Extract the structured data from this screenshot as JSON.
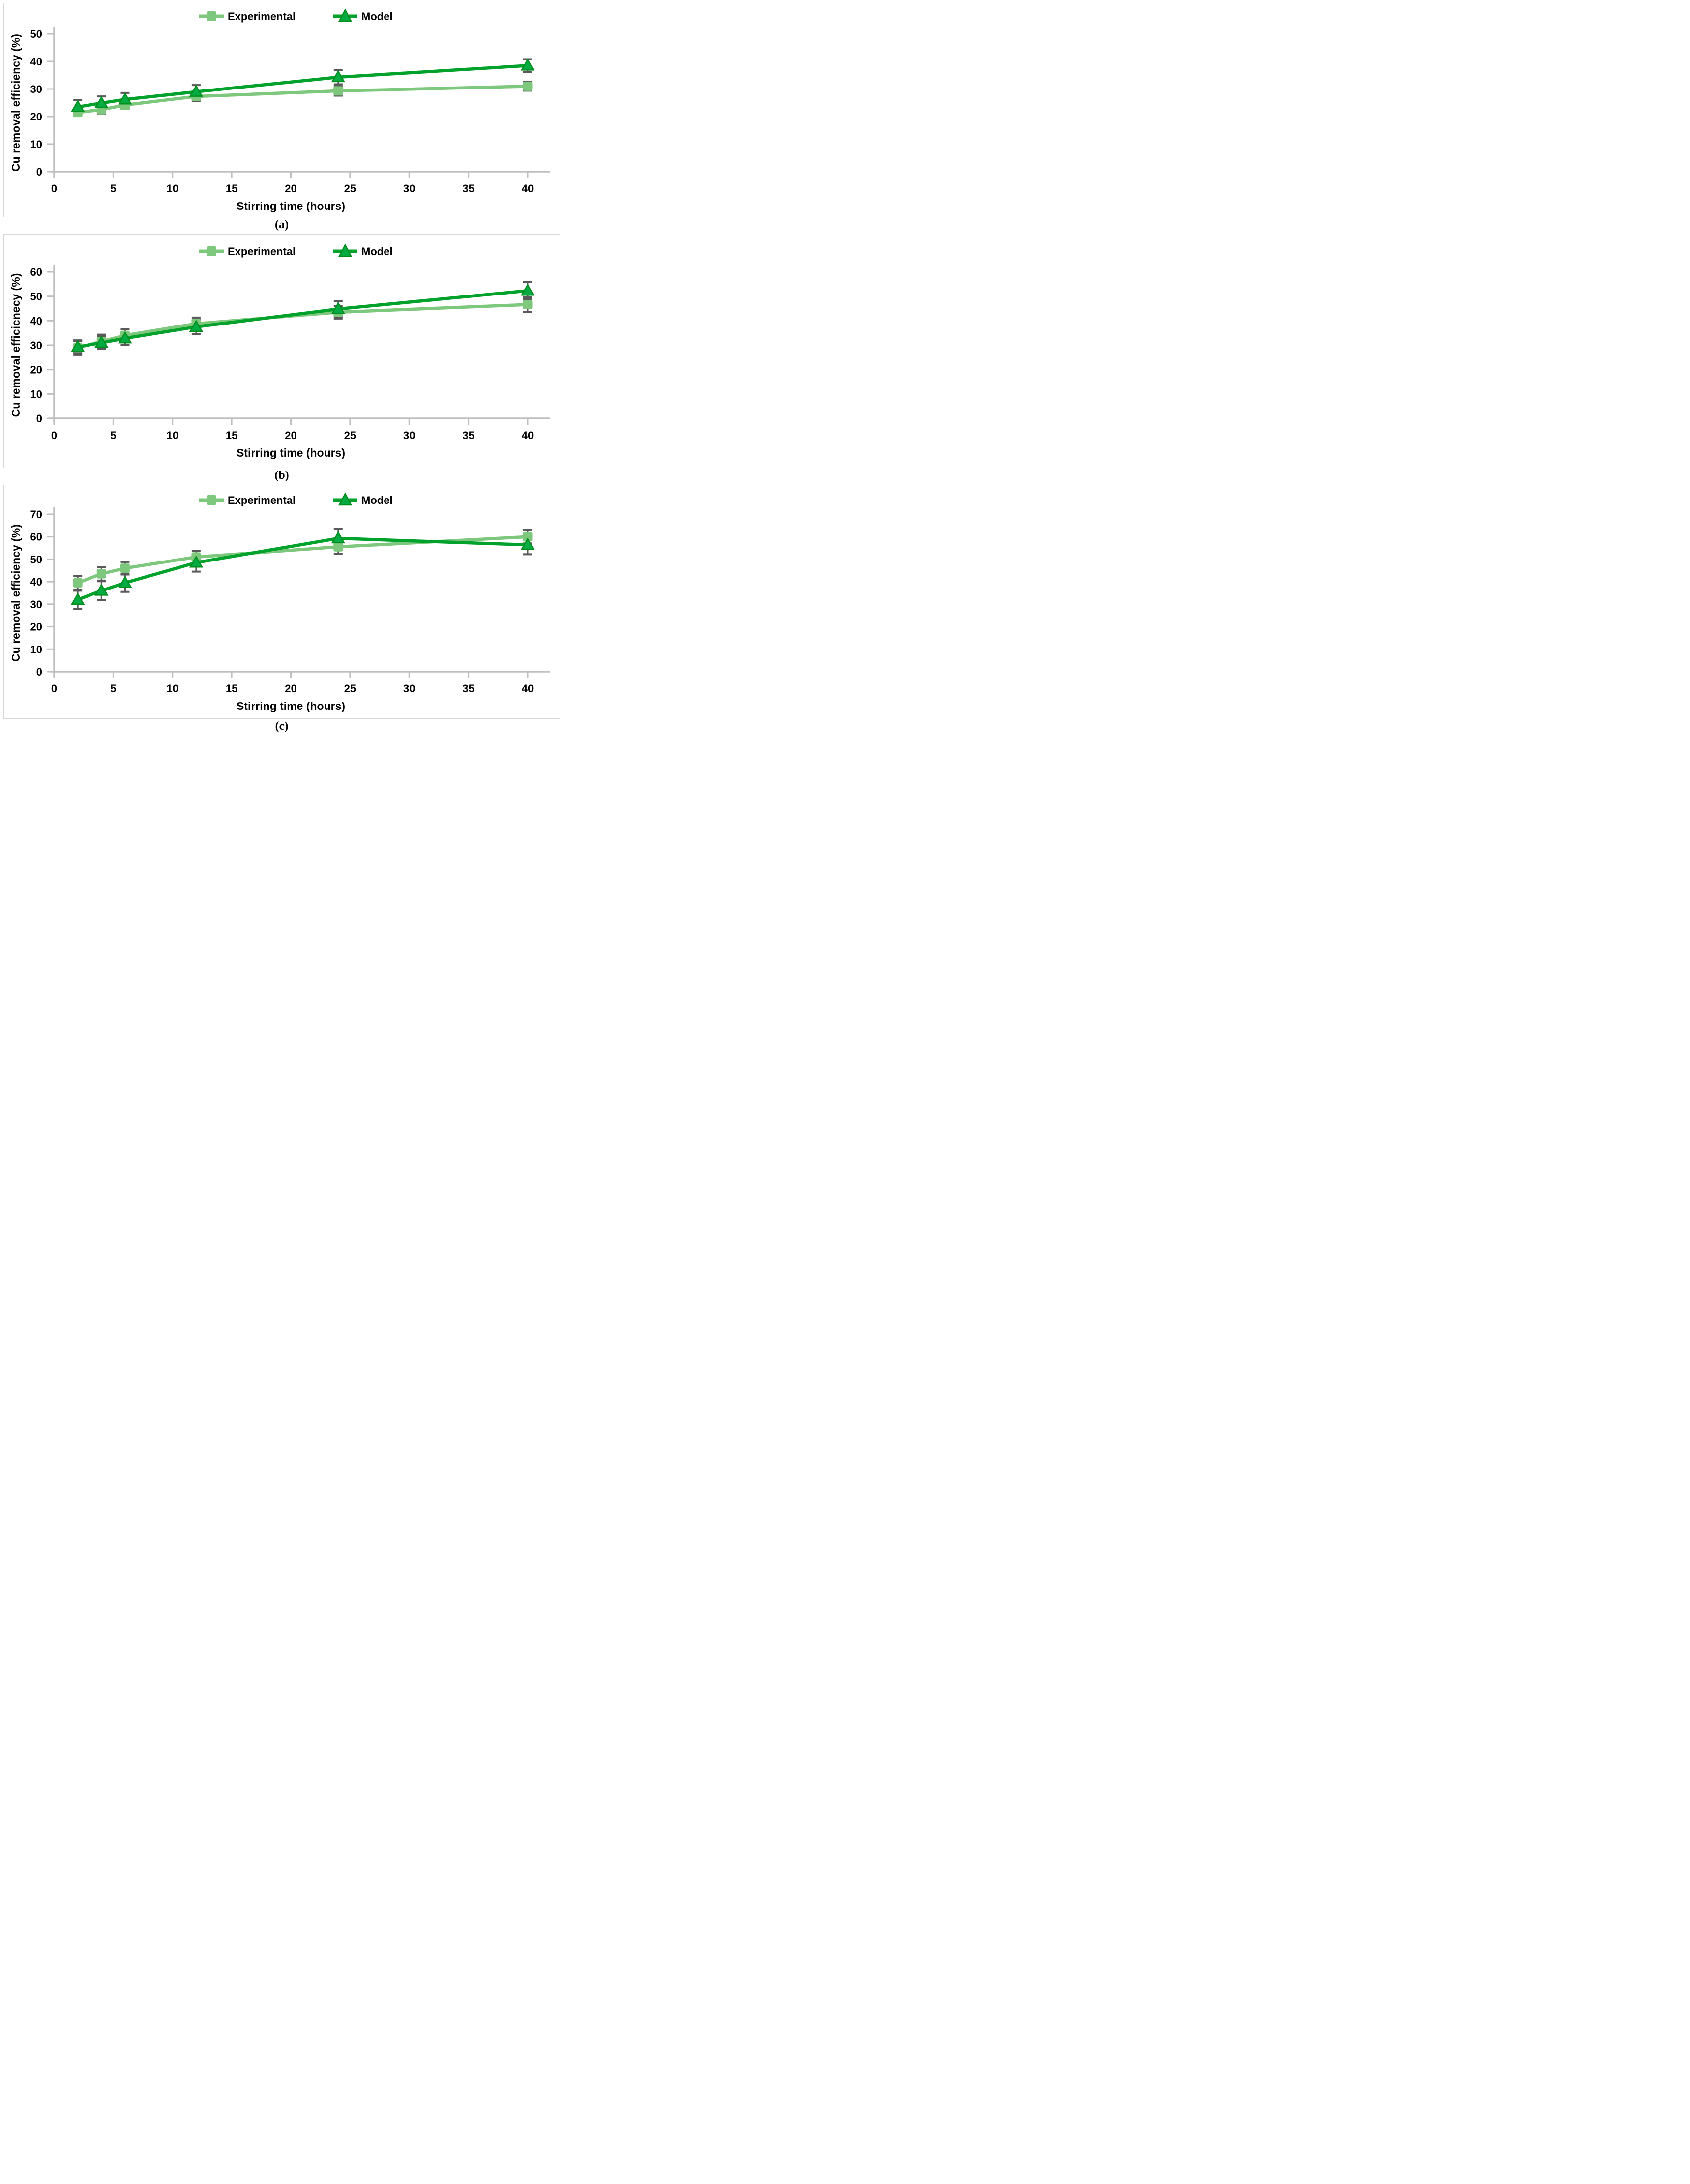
{
  "figure": {
    "type": "scientific-figure",
    "background": "#ffffff",
    "captions": {
      "a": "(a)",
      "b": "(b)",
      "c": "(c)"
    }
  },
  "legend": {
    "experimental_label": "Experimental",
    "model_label": "Model"
  },
  "colors": {
    "experimental": "#7EC87E",
    "model_line": "#00A22C",
    "model_fill": "#00AB41",
    "model_stroke": "#008F1F",
    "error_bar": "#595959",
    "axis": "#BFBFBF",
    "text": "#000000"
  },
  "chart_data": [
    {
      "type": "line",
      "caption": "(a)",
      "xlabel": "Stirring time (hours)",
      "ylabel": "Cu removal efficiency (%)",
      "x": [
        2,
        4,
        6,
        12,
        24,
        40
      ],
      "xticks": [
        0,
        5,
        10,
        15,
        20,
        25,
        30,
        35,
        40
      ],
      "xlim": [
        0,
        42.5
      ],
      "ylim": [
        0,
        50
      ],
      "ytick_step": 10,
      "grid": false,
      "legend_position": "top-center",
      "series": [
        {
          "name": "Experimental",
          "marker": "square",
          "values": [
            21.5,
            22.5,
            24.2,
            27.3,
            29.3,
            31.0
          ],
          "errors": [
            1.3,
            1.4,
            1.5,
            1.6,
            1.7,
            1.6
          ]
        },
        {
          "name": "Model",
          "marker": "triangle",
          "values": [
            23.5,
            24.9,
            26.2,
            29.0,
            34.3,
            38.5
          ],
          "errors": [
            2.4,
            2.4,
            2.4,
            2.4,
            2.6,
            2.3
          ]
        }
      ]
    },
    {
      "type": "line",
      "caption": "(b)",
      "xlabel": "Stirring time (hours)",
      "ylabel": "Cu removal efficicnecy (%)",
      "x": [
        2,
        4,
        6,
        12,
        24,
        40
      ],
      "xticks": [
        0,
        5,
        10,
        15,
        20,
        25,
        30,
        35,
        40
      ],
      "xlim": [
        0,
        42.5
      ],
      "ylim": [
        0,
        60
      ],
      "ytick_step": 10,
      "grid": false,
      "legend_position": "top-center",
      "series": [
        {
          "name": "Experimental",
          "marker": "square",
          "values": [
            29.0,
            31.5,
            34.0,
            38.8,
            43.5,
            46.6
          ],
          "errors": [
            3.0,
            2.8,
            2.5,
            2.5,
            2.6,
            3.0
          ]
        },
        {
          "name": "Model",
          "marker": "triangle",
          "values": [
            29.3,
            31.0,
            32.8,
            37.5,
            44.8,
            52.3
          ],
          "errors": [
            2.5,
            2.6,
            2.6,
            3.0,
            3.3,
            3.5
          ]
        }
      ]
    },
    {
      "type": "line",
      "caption": "(c)",
      "xlabel": "Stirring time (hours)",
      "ylabel": "Cu removal efficiency (%)",
      "x": [
        2,
        4,
        6,
        12,
        24,
        40
      ],
      "xticks": [
        0,
        5,
        10,
        15,
        20,
        25,
        30,
        35,
        40
      ],
      "xlim": [
        0,
        42.5
      ],
      "ylim": [
        0,
        70
      ],
      "ytick_step": 10,
      "grid": false,
      "legend_position": "top-center",
      "series": [
        {
          "name": "Experimental",
          "marker": "square",
          "values": [
            39.5,
            43.5,
            46.0,
            51.0,
            55.5,
            60.0
          ],
          "errors": [
            3.0,
            3.0,
            2.8,
            2.6,
            3.2,
            3.0
          ]
        },
        {
          "name": "Model",
          "marker": "triangle",
          "values": [
            32.0,
            36.0,
            39.5,
            48.5,
            59.3,
            56.4
          ],
          "errors": [
            4.0,
            4.2,
            4.0,
            4.0,
            4.3,
            4.2
          ]
        }
      ]
    }
  ]
}
